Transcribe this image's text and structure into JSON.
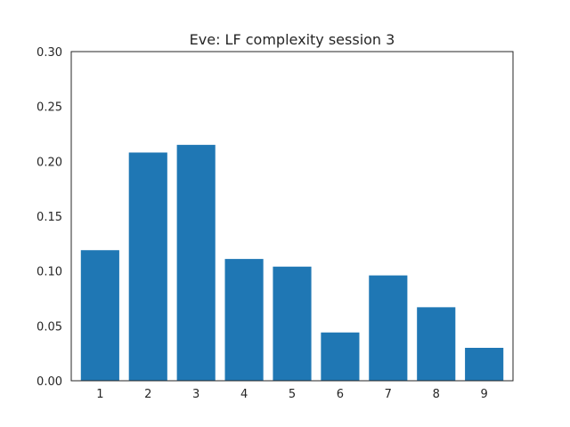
{
  "chart_data": {
    "type": "bar",
    "title": "Eve: LF complexity session 3",
    "xlabel": "",
    "ylabel": "",
    "categories": [
      "1",
      "2",
      "3",
      "4",
      "5",
      "6",
      "7",
      "8",
      "9"
    ],
    "values": [
      0.119,
      0.208,
      0.215,
      0.111,
      0.104,
      0.044,
      0.096,
      0.067,
      0.03
    ],
    "ylim": [
      0,
      0.3
    ],
    "yticks": [
      "0.00",
      "0.05",
      "0.10",
      "0.15",
      "0.20",
      "0.25",
      "0.30"
    ],
    "bar_color": "#1f77b4",
    "grid": false
  }
}
